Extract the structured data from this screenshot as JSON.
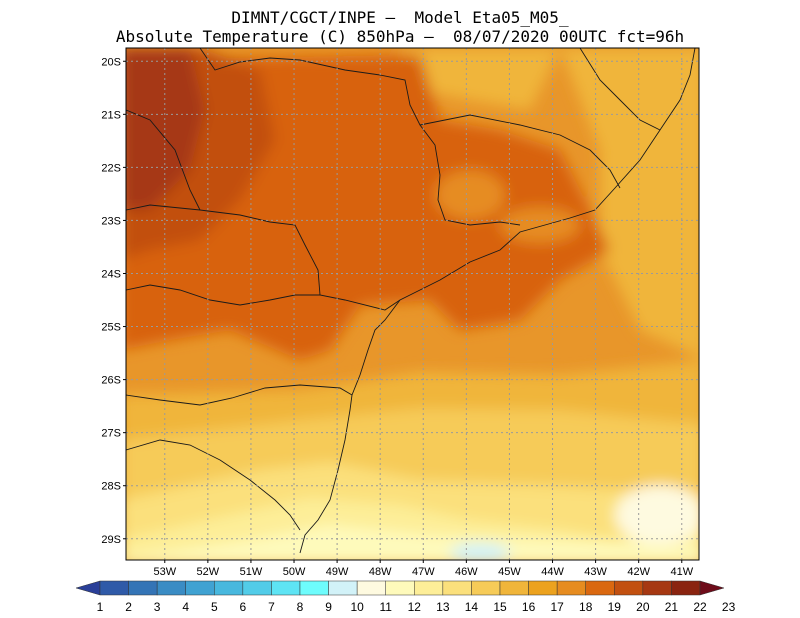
{
  "title": {
    "line1": "DIMNT/CGCT/INPE –  Model Eta05_M05_",
    "line2": "Absolute Temperature (C) 850hPa –  08/07/2020 00UTC fct=96h"
  },
  "map": {
    "lon_range": [
      -53.9,
      -40.6
    ],
    "lat_range": [
      -29.4,
      -19.75
    ],
    "lon_labels": [
      "53W",
      "52W",
      "51W",
      "50W",
      "49W",
      "48W",
      "47W",
      "46W",
      "45W",
      "44W",
      "43W",
      "42W",
      "41W"
    ],
    "lat_labels": [
      "20S",
      "21S",
      "22S",
      "23S",
      "24S",
      "25S",
      "26S",
      "27S",
      "28S",
      "29S"
    ]
  },
  "colorbar": {
    "labels": [
      "1",
      "2",
      "3",
      "4",
      "5",
      "6",
      "7",
      "8",
      "9",
      "10",
      "11",
      "12",
      "13",
      "14",
      "15",
      "16",
      "17",
      "18",
      "19",
      "20",
      "21",
      "22",
      "23"
    ],
    "colors": [
      "#2a3f98",
      "#2f5aa8",
      "#3474b6",
      "#3a8cc4",
      "#40a2d2",
      "#48b8de",
      "#52cce8",
      "#5ee4f4",
      "#6efcfc",
      "#d2f2f8",
      "#fefae0",
      "#fefabb",
      "#fdee98",
      "#fbe07c",
      "#f6cb58",
      "#f0b53a",
      "#eca21e",
      "#e68c20",
      "#da6810",
      "#c25010",
      "#a63812",
      "#8a2410",
      "#6e0c1a"
    ]
  }
}
